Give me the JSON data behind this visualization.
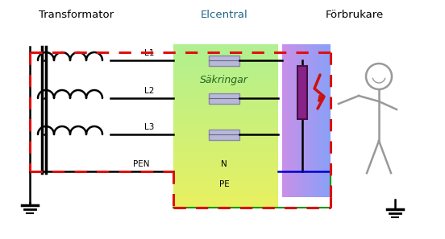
{
  "title_transformator": "Transformator",
  "title_elcentral": "Elcentral",
  "title_forbrukare": "Förbrukare",
  "label_L1": "L1",
  "label_L2": "L2",
  "label_L3": "L3",
  "label_PEN": "PEN",
  "label_N": "N",
  "label_PE": "PE",
  "label_Sakringar": "Säkringar",
  "dashed_red_color": "#dd1111",
  "wire_black": "#111111",
  "wire_blue": "#0000cc",
  "wire_green": "#009900",
  "fuse_color": "#b8b8d8",
  "resistor_fill": "#882288",
  "lightning_color": "#cc1111",
  "figure_color": "#999999",
  "elcentral_yellow": "#e8f060",
  "elcentral_green": "#b8f0a0",
  "forb_purple": "#c8a8e8",
  "forb_blue": "#88a8f8"
}
